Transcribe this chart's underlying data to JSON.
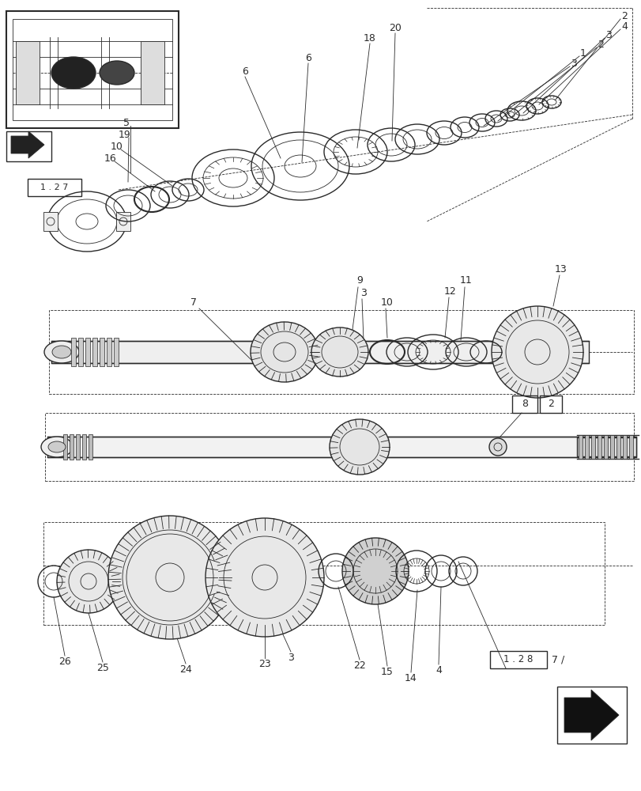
{
  "bg_color": "#ffffff",
  "line_color": "#2a2a2a",
  "fig_width": 8.12,
  "fig_height": 10.0,
  "ref_box_1": "1 . 2 7",
  "ref_box_2": "1 . 2 8",
  "ref_box_3": "7 /"
}
